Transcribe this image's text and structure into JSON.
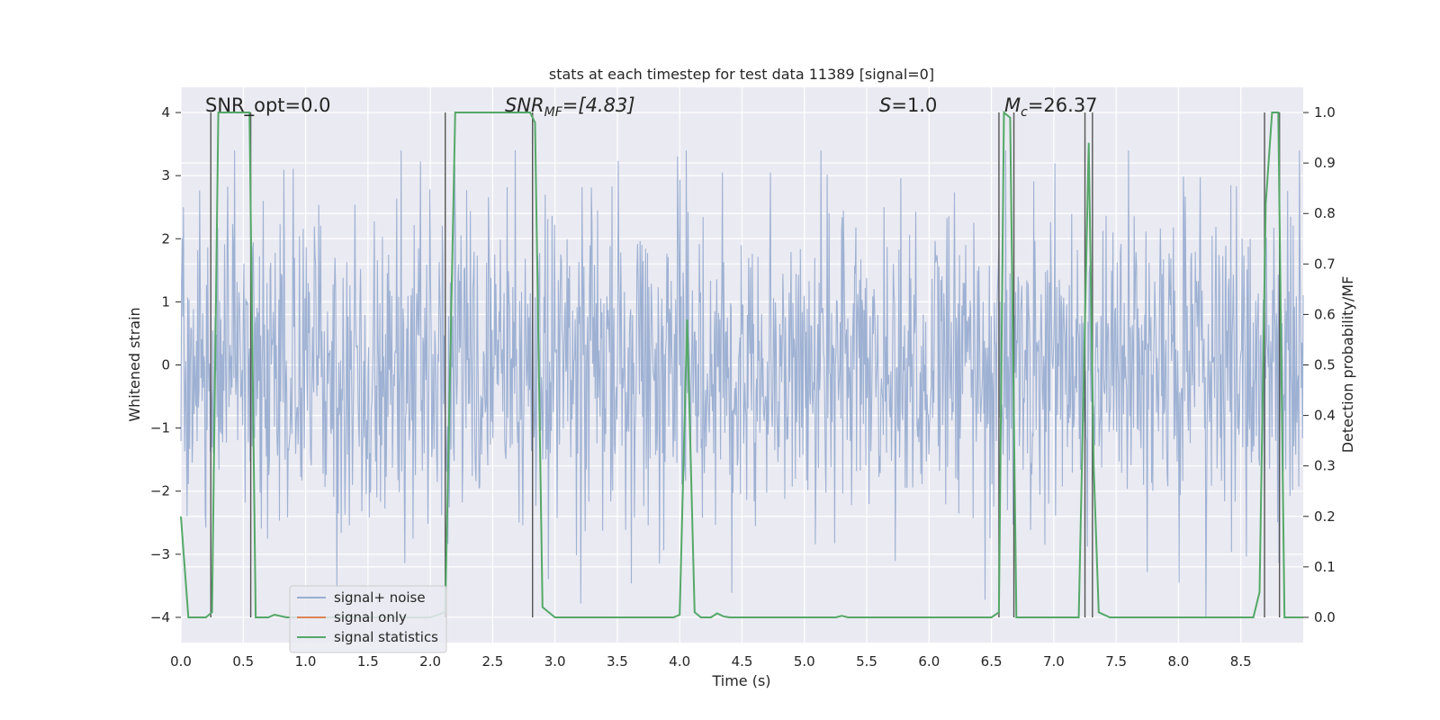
{
  "chart_data": {
    "type": "line",
    "title": "stats at each timestep for test data 11389 [signal=0]",
    "xlabel": "Time (s)",
    "ylabel_left": "Whitened strain",
    "ylabel_right": "Detection probability/MF",
    "xlim": [
      0.0,
      9.0
    ],
    "ylim_left": [
      -4.4,
      4.4
    ],
    "ylim_right": [
      -0.05,
      1.05
    ],
    "x_ticks": [
      0.0,
      0.5,
      1.0,
      1.5,
      2.0,
      2.5,
      3.0,
      3.5,
      4.0,
      4.5,
      5.0,
      5.5,
      6.0,
      6.5,
      7.0,
      7.5,
      8.0,
      8.5
    ],
    "x_tick_labels": [
      "0.0",
      "0.5",
      "1.0",
      "1.5",
      "2.0",
      "2.5",
      "3.0",
      "3.5",
      "4.0",
      "4.5",
      "5.0",
      "5.5",
      "6.0",
      "6.5",
      "7.0",
      "7.5",
      "8.0",
      "8.5"
    ],
    "y_left_ticks": [
      4,
      3,
      2,
      1,
      0,
      -1,
      -2,
      -3,
      -4
    ],
    "y_left_tick_labels": [
      "4",
      "3",
      "2",
      "1",
      "0",
      "−1",
      "−2",
      "−3",
      "−4"
    ],
    "y_right_ticks": [
      1.0,
      0.9,
      0.8,
      0.7,
      0.6,
      0.5,
      0.4,
      0.3,
      0.2,
      0.1,
      0.0
    ],
    "y_right_tick_labels": [
      "1.0",
      "0.9",
      "0.8",
      "0.7",
      "0.6",
      "0.5",
      "0.4",
      "0.3",
      "0.2",
      "0.1",
      "0.0"
    ],
    "grid": true,
    "legend_location": "lower-left",
    "series": [
      {
        "name": "signal+ noise",
        "color": "#9aaed1",
        "kind": "noise",
        "description_values": {
          "n_samples": 1800,
          "typical_range": [
            -2.5,
            2.5
          ],
          "peak_range": [
            -4.0,
            3.4
          ]
        }
      },
      {
        "name": "signal only",
        "color": "#dd8452",
        "kind": "flat",
        "values": []
      },
      {
        "name": "signal statistics",
        "color": "#55a868",
        "kind": "line",
        "axis": "right",
        "x": [
          0.0,
          0.06,
          0.2,
          0.25,
          0.3,
          0.55,
          0.6,
          0.7,
          0.75,
          0.85,
          2.0,
          2.12,
          2.2,
          2.8,
          2.84,
          2.9,
          3.0,
          3.95,
          4.0,
          4.06,
          4.12,
          4.17,
          4.25,
          4.3,
          4.35,
          4.4,
          4.5,
          5.25,
          5.3,
          5.35,
          6.5,
          6.56,
          6.6,
          6.65,
          6.7,
          6.8,
          7.2,
          7.28,
          7.32,
          7.36,
          7.45,
          7.5,
          8.6,
          8.65,
          8.7,
          8.75,
          8.8,
          8.85,
          8.9,
          8.95,
          9.0
        ],
        "y": [
          0.2,
          0.0,
          0.0,
          0.01,
          1.0,
          1.0,
          0.0,
          0.0,
          0.005,
          0.0,
          0.0,
          0.01,
          1.0,
          1.0,
          0.98,
          0.02,
          0.0,
          0.0,
          0.005,
          0.59,
          0.01,
          0.0,
          0.0,
          0.008,
          0.002,
          0.0,
          0.0,
          0.0,
          0.003,
          0.0,
          0.0,
          0.01,
          1.0,
          0.99,
          0.0,
          0.0,
          0.0,
          0.94,
          0.3,
          0.01,
          0.0,
          0.0,
          0.0,
          0.05,
          0.82,
          1.0,
          1.0,
          0.0,
          0.0,
          0.0,
          0.0
        ]
      }
    ],
    "vertical_markers": [
      0.24,
      0.56,
      2.12,
      2.82,
      6.56,
      6.68,
      7.25,
      7.31,
      8.69,
      8.81
    ],
    "annotations": [
      {
        "text": "SNR_opt=0.0",
        "x": 0.2
      },
      {
        "text": "SNR",
        "sub": "MF",
        "rest": "=[4.83]",
        "italic": true,
        "x": 2.6
      },
      {
        "text": "S",
        "rest": "=1.0",
        "italic": true,
        "x": 5.6
      },
      {
        "text": "M",
        "sub": "c",
        "rest": "=26.37",
        "italic": true,
        "x": 6.6
      }
    ]
  },
  "colors": {
    "plot_bg": "#eaeaf2",
    "grid": "#ffffff",
    "marker": "#555555"
  }
}
